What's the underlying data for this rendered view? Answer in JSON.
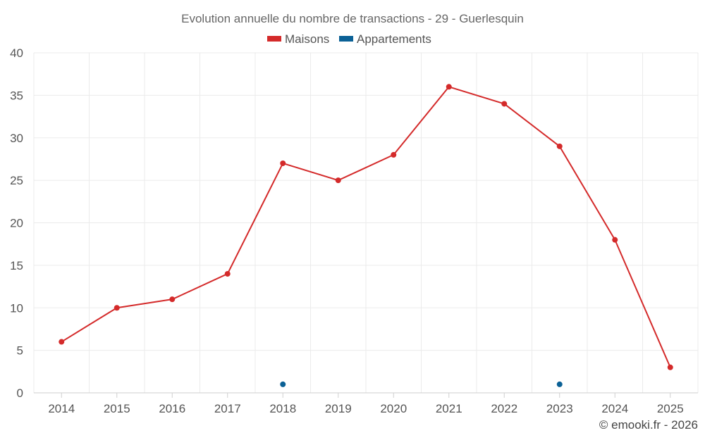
{
  "chart_data": {
    "type": "line",
    "title": "Evolution annuelle du nombre de transactions - 29 - Guerlesquin",
    "xlabel": "",
    "ylabel": "",
    "categories": [
      "2014",
      "2015",
      "2016",
      "2017",
      "2018",
      "2019",
      "2020",
      "2021",
      "2022",
      "2023",
      "2024",
      "2025"
    ],
    "ylim": [
      0,
      40
    ],
    "yticks": [
      "0",
      "5",
      "10",
      "15",
      "20",
      "25",
      "30",
      "35",
      "40"
    ],
    "grid": true,
    "legend_position": "top-center",
    "series": [
      {
        "name": "Maisons",
        "color": "#d42a2a",
        "style": "line-with-markers",
        "values": [
          6,
          10,
          11,
          14,
          27,
          25,
          28,
          36,
          34,
          29,
          18,
          3
        ]
      },
      {
        "name": "Appartements",
        "color": "#0b6196",
        "style": "markers-only",
        "values": [
          null,
          null,
          null,
          null,
          1,
          null,
          null,
          null,
          null,
          1,
          null,
          null
        ]
      }
    ]
  },
  "credit": "© emooki.fr - 2026"
}
